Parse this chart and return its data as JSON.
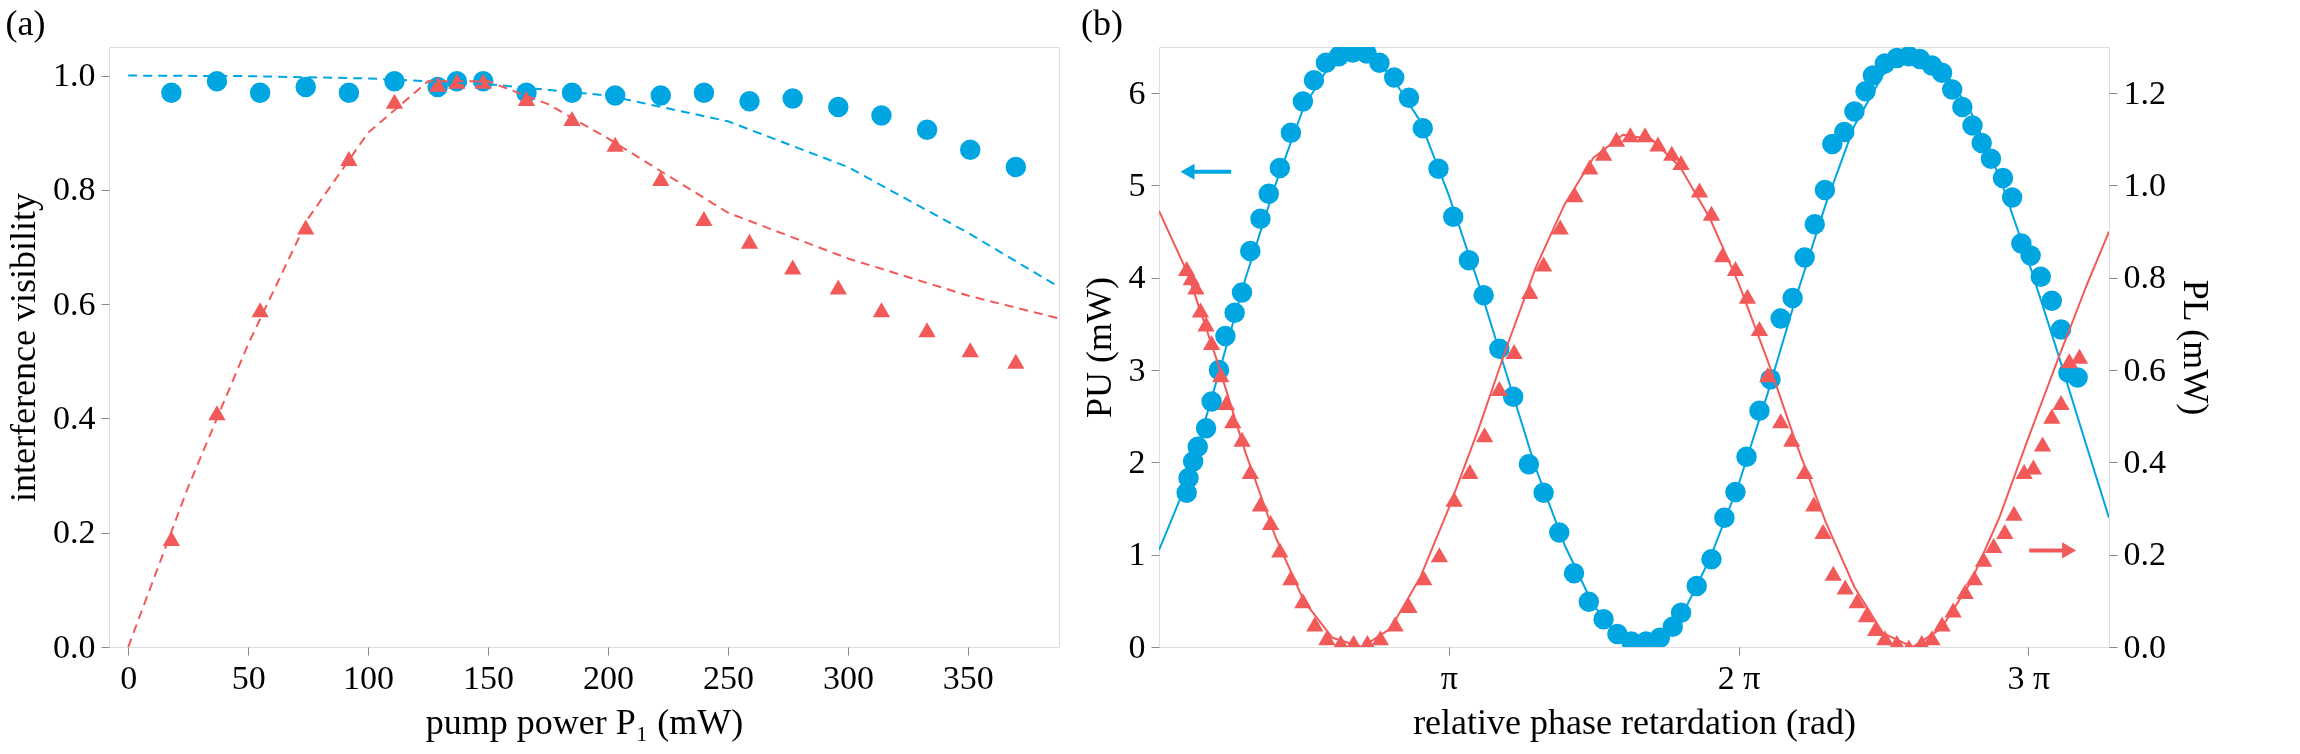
{
  "chart_data": [
    {
      "type": "scatter",
      "title": "(a)",
      "xlabel": "pump power P₁ (mW)",
      "ylabel": "interference visibility",
      "xlim": [
        -8,
        388
      ],
      "xticks": [
        0,
        50,
        100,
        150,
        200,
        250,
        300,
        350
      ],
      "ylim": [
        0,
        1.05
      ],
      "yticks": [
        {
          "value": 0,
          "label": "0.0"
        },
        0.2,
        0.4,
        0.6,
        0.8,
        {
          "value": 1,
          "label": "1.0"
        }
      ],
      "grid": false,
      "x": [
        18,
        37,
        55,
        74,
        92,
        111,
        129,
        137,
        148,
        166,
        185,
        203,
        222,
        240,
        259,
        277,
        296,
        314,
        333,
        351,
        370
      ],
      "series": [
        {
          "marker": "circle",
          "color": "#00a6e2",
          "values": [
            0.97,
            0.99,
            0.97,
            0.98,
            0.97,
            0.99,
            0.98,
            0.99,
            0.99,
            0.97,
            0.97,
            0.965,
            0.965,
            0.97,
            0.955,
            0.96,
            0.945,
            0.93,
            0.905,
            0.87,
            0.84
          ]
        },
        {
          "marker": "triangle",
          "color": "#f25a5a",
          "values": [
            0.19,
            0.41,
            0.59,
            0.735,
            0.855,
            0.955,
            0.985,
            0.99,
            0.99,
            0.96,
            0.925,
            0.88,
            0.82,
            0.75,
            0.71,
            0.665,
            0.63,
            0.59,
            0.555,
            0.52,
            0.5
          ]
        },
        {
          "type": "line",
          "marker": "none",
          "line_style": "dashed",
          "color": "#00a6e2",
          "x": [
            0,
            50,
            100,
            150,
            200,
            250,
            300,
            350,
            388
          ],
          "values": [
            1.0,
            0.999,
            0.995,
            0.985,
            0.965,
            0.92,
            0.84,
            0.725,
            0.63
          ]
        },
        {
          "type": "line",
          "marker": "none",
          "line_style": "dashed",
          "color": "#f25a5a",
          "x": [
            0,
            25,
            50,
            75,
            100,
            125,
            150,
            175,
            200,
            250,
            300,
            350,
            388
          ],
          "values": [
            0,
            0.28,
            0.53,
            0.75,
            0.9,
            0.99,
            0.99,
            0.95,
            0.89,
            0.76,
            0.68,
            0.615,
            0.575
          ]
        }
      ]
    },
    {
      "type": "scatter",
      "title": "(b)",
      "xlabel": "relative phase retardation (rad)",
      "ylabel": "PU (mW)",
      "y2label": "PL (mW)",
      "xlim": [
        0,
        10.3
      ],
      "xticks": [
        {
          "value": 3.1416,
          "label": "π"
        },
        {
          "value": 6.2832,
          "label": "2 π"
        },
        {
          "value": 9.4248,
          "label": "3 π"
        }
      ],
      "ylim": [
        0,
        6.5
      ],
      "yticks": [
        0,
        1,
        2,
        3,
        4,
        5,
        6
      ],
      "y2lim": [
        0,
        1.3
      ],
      "y2ticks": [
        {
          "value": 0,
          "label": "0.0"
        },
        0.2,
        0.4,
        0.6,
        0.8,
        {
          "value": 1,
          "label": "1.0"
        },
        1.2
      ],
      "grid": false,
      "series": [
        {
          "marker": "circle",
          "color": "#00a6e2",
          "axis": "y",
          "x": [
            0.3,
            0.32,
            0.37,
            0.42,
            0.51,
            0.57,
            0.65,
            0.72,
            0.82,
            0.9,
            0.99,
            1.1,
            1.19,
            1.31,
            1.43,
            1.56,
            1.68,
            1.81,
            1.95,
            2.1,
            2.25,
            2.39,
            2.55,
            2.71,
            2.86,
            3.03,
            3.19,
            3.36,
            3.52,
            3.69,
            3.84,
            4.01,
            4.17,
            4.34,
            4.5,
            4.66,
            4.82,
            4.97,
            5.12,
            5.28,
            5.43,
            5.57,
            5.66,
            5.83,
            5.99,
            6.13,
            6.25,
            6.37,
            6.51,
            6.63,
            6.74,
            6.87,
            7.0,
            7.11,
            7.22,
            7.3,
            7.43,
            7.54,
            7.66,
            7.74,
            7.87,
            8.0,
            8.13,
            8.25,
            8.38,
            8.49,
            8.6,
            8.71,
            8.82,
            8.92,
            9.02,
            9.15,
            9.25,
            9.35,
            9.45,
            9.56,
            9.68,
            9.78,
            9.86,
            9.96
          ],
          "values": [
            1.67,
            1.83,
            2.01,
            2.17,
            2.37,
            2.66,
            3.0,
            3.37,
            3.62,
            3.84,
            4.29,
            4.64,
            4.91,
            5.19,
            5.57,
            5.91,
            6.14,
            6.33,
            6.4,
            6.44,
            6.43,
            6.33,
            6.17,
            5.95,
            5.62,
            5.18,
            4.66,
            4.19,
            3.81,
            3.23,
            2.71,
            1.98,
            1.67,
            1.24,
            0.8,
            0.49,
            0.3,
            0.14,
            0.06,
            0.06,
            0.1,
            0.22,
            0.37,
            0.66,
            0.95,
            1.4,
            1.68,
            2.06,
            2.56,
            2.9,
            3.56,
            3.78,
            4.22,
            4.58,
            4.95,
            5.45,
            5.58,
            5.8,
            6.02,
            6.19,
            6.32,
            6.38,
            6.4,
            6.37,
            6.3,
            6.22,
            6.04,
            5.85,
            5.65,
            5.46,
            5.29,
            5.08,
            4.87,
            4.37,
            4.24,
            4.01,
            3.75,
            3.44,
            2.97,
            2.92
          ]
        },
        {
          "type": "line",
          "marker": "none",
          "line_style": "solid",
          "color": "#00a6e2",
          "axis": "y",
          "x": [
            0,
            0.31,
            0.63,
            0.94,
            1.26,
            1.57,
            1.88,
            2.2,
            2.51,
            2.83,
            3.14,
            3.46,
            3.77,
            4.08,
            4.4,
            4.71,
            5.03,
            5.34,
            5.65,
            5.97,
            6.28,
            6.6,
            6.91,
            7.23,
            7.54,
            7.85,
            8.17,
            8.48,
            8.8,
            9.11,
            9.42,
            9.74,
            10.05,
            10.3
          ],
          "values": [
            1.05,
            1.8,
            2.9,
            4.0,
            5.0,
            5.85,
            6.35,
            6.45,
            6.2,
            5.7,
            4.9,
            3.95,
            2.95,
            1.95,
            1.1,
            0.45,
            0.08,
            0.02,
            0.3,
            0.95,
            1.75,
            2.75,
            3.8,
            4.8,
            5.65,
            6.2,
            6.45,
            6.3,
            5.8,
            5.1,
            4.2,
            3.2,
            2.2,
            1.4
          ]
        },
        {
          "marker": "triangle",
          "color": "#f25a5a",
          "axis": "y2",
          "x": [
            0.3,
            0.35,
            0.4,
            0.45,
            0.51,
            0.57,
            0.67,
            0.73,
            0.8,
            0.9,
            0.99,
            1.1,
            1.21,
            1.31,
            1.43,
            1.56,
            1.69,
            1.82,
            1.97,
            2.11,
            2.26,
            2.4,
            2.56,
            2.71,
            2.87,
            3.04,
            3.2,
            3.37,
            3.53,
            3.69,
            3.85,
            4.02,
            4.17,
            4.35,
            4.51,
            4.67,
            4.82,
            4.96,
            5.11,
            5.27,
            5.41,
            5.56,
            5.66,
            5.86,
            5.99,
            6.11,
            6.25,
            6.38,
            6.51,
            6.6,
            6.74,
            6.86,
            7.0,
            7.1,
            7.2,
            7.31,
            7.44,
            7.57,
            7.67,
            7.77,
            7.87,
            8.0,
            8.13,
            8.27,
            8.38,
            8.49,
            8.61,
            8.74,
            8.84,
            8.94,
            9.05,
            9.17,
            9.27,
            9.38,
            9.48,
            9.58,
            9.68,
            9.78,
            9.87,
            9.98
          ],
          "values": [
            0.82,
            0.8,
            0.78,
            0.73,
            0.7,
            0.66,
            0.59,
            0.53,
            0.49,
            0.45,
            0.38,
            0.31,
            0.27,
            0.21,
            0.15,
            0.1,
            0.05,
            0.02,
            0.01,
            0.01,
            0.01,
            0.02,
            0.05,
            0.09,
            0.15,
            0.2,
            0.32,
            0.38,
            0.46,
            0.56,
            0.64,
            0.77,
            0.83,
            0.91,
            0.98,
            1.04,
            1.07,
            1.1,
            1.11,
            1.11,
            1.09,
            1.07,
            1.05,
            0.99,
            0.94,
            0.85,
            0.82,
            0.76,
            0.69,
            0.59,
            0.49,
            0.45,
            0.38,
            0.31,
            0.25,
            0.16,
            0.13,
            0.1,
            0.07,
            0.04,
            0.02,
            0.01,
            0.0,
            0.01,
            0.02,
            0.05,
            0.08,
            0.12,
            0.15,
            0.19,
            0.22,
            0.25,
            0.29,
            0.38,
            0.39,
            0.44,
            0.5,
            0.53,
            0.62,
            0.63
          ]
        },
        {
          "type": "line",
          "marker": "none",
          "line_style": "solid",
          "color": "#f25a5a",
          "axis": "y2",
          "x": [
            0,
            0.31,
            0.63,
            0.94,
            1.26,
            1.57,
            1.88,
            2.2,
            2.51,
            2.83,
            3.14,
            3.46,
            3.77,
            4.08,
            4.4,
            4.71,
            5.03,
            5.34,
            5.65,
            5.97,
            6.28,
            6.6,
            6.91,
            7.23,
            7.54,
            7.85,
            8.17,
            8.48,
            8.8,
            9.11,
            9.42,
            9.74,
            10.05,
            10.3
          ],
          "values": [
            0.945,
            0.81,
            0.62,
            0.42,
            0.24,
            0.1,
            0.02,
            0.0,
            0.04,
            0.15,
            0.3,
            0.47,
            0.65,
            0.82,
            0.96,
            1.06,
            1.11,
            1.1,
            1.04,
            0.93,
            0.79,
            0.62,
            0.44,
            0.27,
            0.13,
            0.03,
            0.0,
            0.04,
            0.14,
            0.28,
            0.45,
            0.62,
            0.78,
            0.9
          ]
        }
      ]
    }
  ]
}
